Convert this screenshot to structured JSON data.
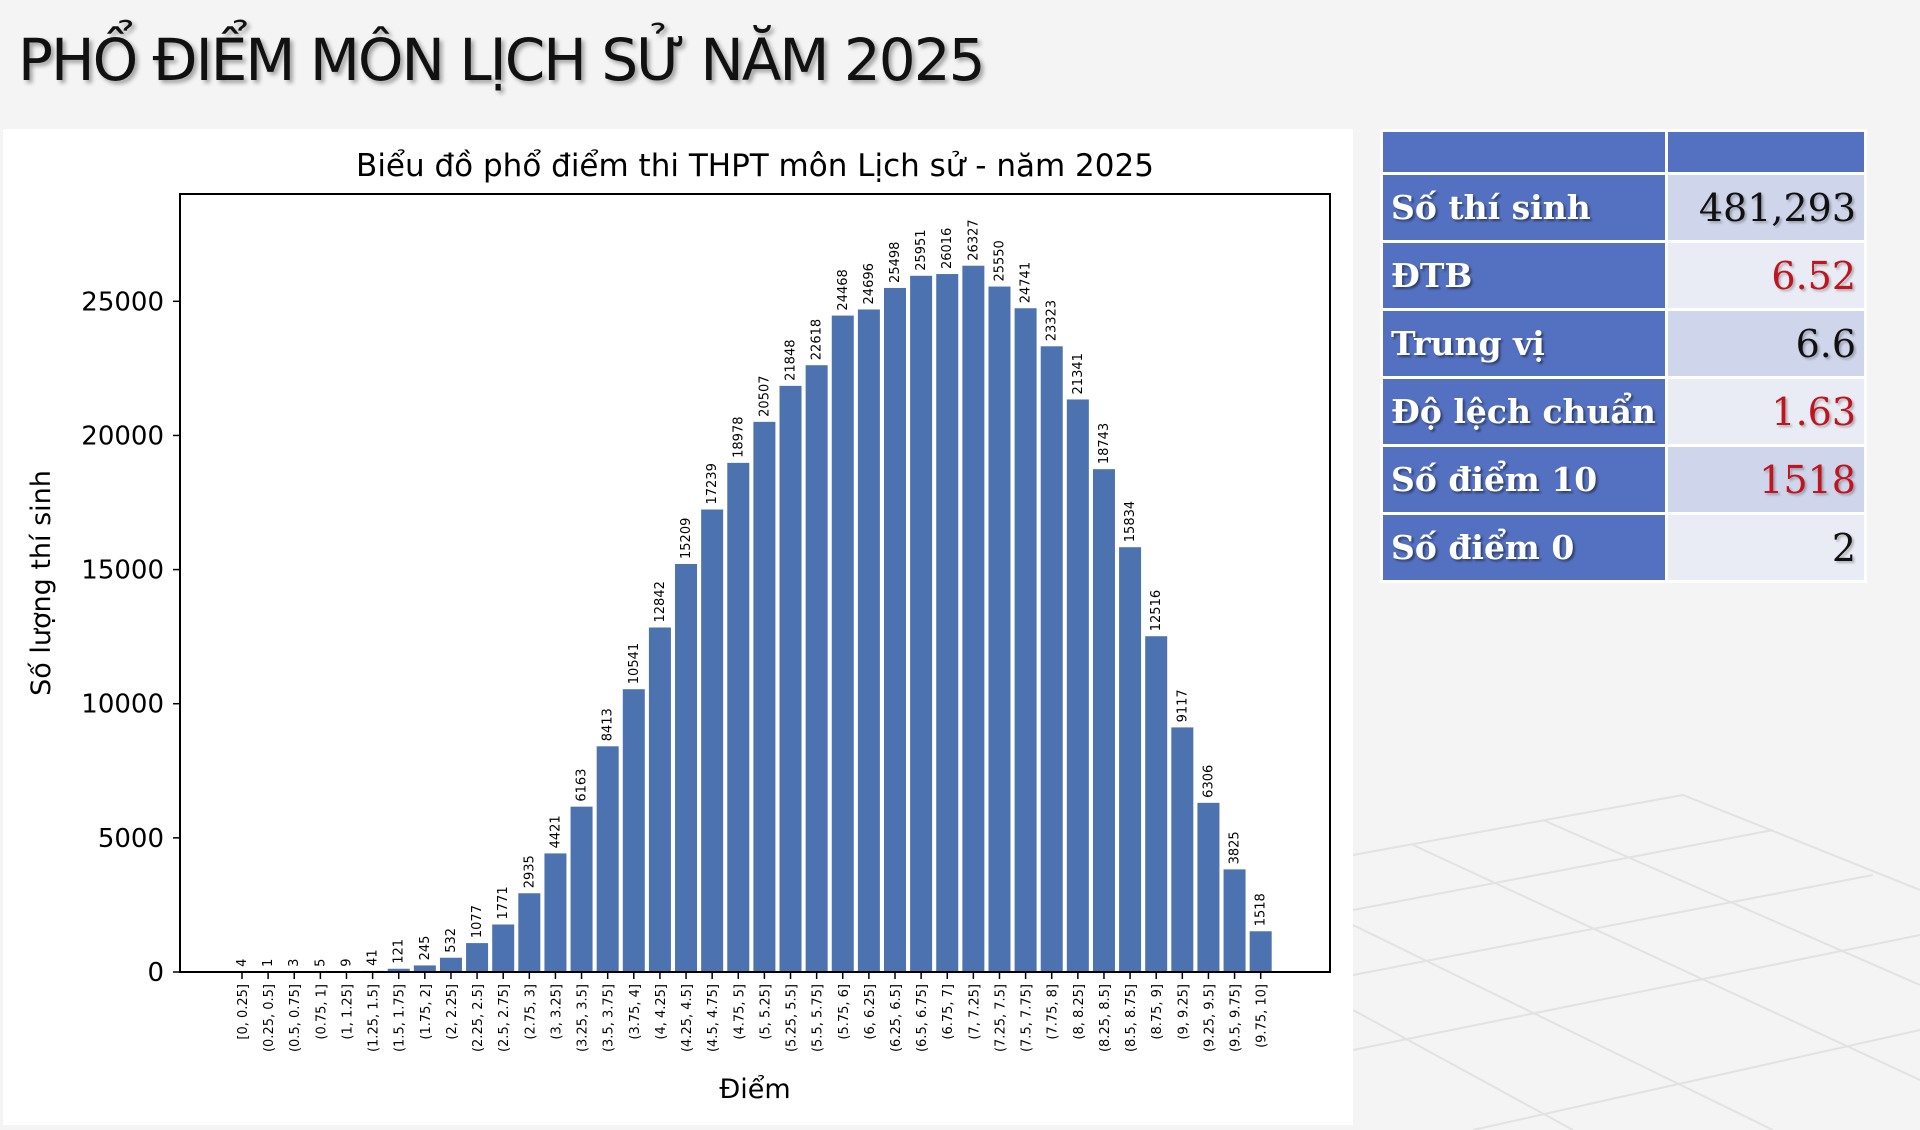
{
  "title": "PHỔ ĐIỂM MÔN LỊCH SỬ NĂM 2025",
  "stats_table": {
    "rows": [
      {
        "label": "Số thí sinh",
        "value": "481,293",
        "value_color": "#111111"
      },
      {
        "label": "ĐTB",
        "value": "6.52",
        "value_color": "#c0141e"
      },
      {
        "label": "Trung vị",
        "value": "6.6",
        "value_color": "#111111"
      },
      {
        "label": "Độ lệch chuẩn",
        "value": "1.63",
        "value_color": "#c0141e"
      },
      {
        "label": "Số điểm 10",
        "value": "1518",
        "value_color": "#c0141e"
      },
      {
        "label": "Số điểm 0",
        "value": "2",
        "value_color": "#111111"
      }
    ]
  },
  "chart_data": {
    "type": "bar",
    "title": "Biểu đồ phổ điểm thi THPT môn Lịch sử - năm 2025",
    "xlabel": "Điểm",
    "ylabel": "Số lượng thí sinh",
    "categories": [
      "[0, 0.25]",
      "(0.25, 0.5]",
      "(0.5, 0.75]",
      "(0.75, 1]",
      "(1, 1.25]",
      "(1.25, 1.5]",
      "(1.5, 1.75]",
      "(1.75, 2]",
      "(2, 2.25]",
      "(2.25, 2.5]",
      "(2.5, 2.75]",
      "(2.75, 3]",
      "(3, 3.25]",
      "(3.25, 3.5]",
      "(3.5, 3.75]",
      "(3.75, 4]",
      "(4, 4.25]",
      "(4.25, 4.5]",
      "(4.5, 4.75]",
      "(4.75, 5]",
      "(5, 5.25]",
      "(5.25, 5.5]",
      "(5.5, 5.75]",
      "(5.75, 6]",
      "(6, 6.25]",
      "(6.25, 6.5]",
      "(6.5, 6.75]",
      "(6.75, 7]",
      "(7, 7.25]",
      "(7.25, 7.5]",
      "(7.5, 7.75]",
      "(7.75, 8]",
      "(8, 8.25]",
      "(8.25, 8.5]",
      "(8.5, 8.75]",
      "(8.75, 9]",
      "(9, 9.25]",
      "(9.25, 9.5]",
      "(9.5, 9.75]",
      "(9.75, 10]"
    ],
    "values": [
      4,
      1,
      3,
      5,
      9,
      41,
      121,
      245,
      532,
      1077,
      1771,
      2935,
      4421,
      6163,
      8413,
      10541,
      12842,
      15209,
      17239,
      18978,
      20507,
      21848,
      22618,
      24468,
      24696,
      25498,
      25951,
      26016,
      26327,
      25550,
      24741,
      23323,
      21341,
      18743,
      15834,
      12516,
      9117,
      6306,
      3825,
      1518
    ],
    "yticks": [
      0,
      5000,
      10000,
      15000,
      20000,
      25000
    ],
    "ylim": [
      0,
      29000
    ],
    "bar_color": "#4c72b0",
    "grid": false,
    "legend": false
  }
}
